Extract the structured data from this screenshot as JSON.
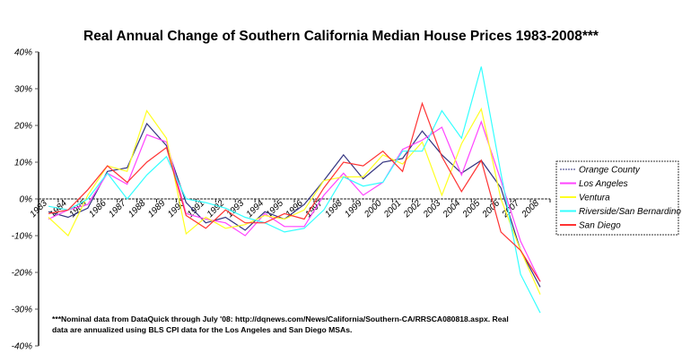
{
  "chart_data": {
    "type": "line",
    "title": "Real Annual Change of Southern California Median House Prices 1983-2008***",
    "xlabel": "",
    "ylabel": "",
    "ylim": [
      -40,
      40
    ],
    "yticks": [
      40,
      30,
      20,
      10,
      0,
      -10,
      -20,
      -30,
      -40
    ],
    "ytick_labels": [
      "40%",
      "30%",
      "20%",
      "10%",
      "0%",
      "-10%",
      "-20%",
      "-30%",
      "-40%"
    ],
    "grid": false,
    "legend_position": "right",
    "categories": [
      "1983",
      "1984",
      "1985",
      "1986",
      "1987",
      "1988",
      "1989",
      "1990",
      "1991",
      "1992",
      "1993",
      "1994",
      "1995",
      "1996",
      "1997",
      "1998",
      "1999",
      "2000",
      "2001",
      "2002",
      "2003",
      "2004",
      "2005",
      "2006",
      "2007",
      "2008"
    ],
    "series": [
      {
        "name": "Orange County",
        "color": "#333380",
        "dashed": true,
        "values": [
          -3.5,
          -5,
          -2.5,
          7.5,
          8.5,
          20.5,
          14.5,
          -1,
          -6.5,
          -5,
          -8.5,
          -3.5,
          -5.5,
          -1.5,
          5,
          12,
          5.5,
          10,
          11,
          18.5,
          12,
          7,
          10.5,
          3,
          -14,
          -24
        ]
      },
      {
        "name": "Los Angeles",
        "color": "#ff44ff",
        "values": [
          -5.5,
          -3,
          -1.5,
          7,
          4,
          17.5,
          15.5,
          -4,
          -5.5,
          -6.5,
          -10,
          -4,
          -7.5,
          -7.5,
          1,
          7,
          1,
          4.5,
          13.5,
          16,
          19.5,
          6.5,
          21,
          5,
          -11.5,
          -22.5
        ]
      },
      {
        "name": "Ventura",
        "color": "#ffff22",
        "values": [
          -5,
          -10,
          1,
          9,
          7.5,
          24,
          16.5,
          -9.5,
          -5,
          -8,
          -7,
          -4.5,
          -5.5,
          -3,
          5,
          6,
          6,
          12,
          9.5,
          15.5,
          1,
          15,
          24.5,
          0,
          -14,
          -26
        ]
      },
      {
        "name": "Riverside/San Bernardino",
        "color": "#33ffff",
        "values": [
          -2,
          -3,
          0,
          7,
          0,
          6.5,
          11.5,
          0,
          -1,
          -2.5,
          -5,
          -6.5,
          -9,
          -8,
          -3,
          6,
          3.5,
          4.5,
          13,
          13,
          24,
          16.5,
          36,
          7,
          -20.5,
          -31
        ]
      },
      {
        "name": "San Diego",
        "color": "#ff3333",
        "values": [
          -4,
          -3,
          2.5,
          9,
          4.5,
          10,
          14,
          -4.5,
          -8,
          -3,
          -6.5,
          -6.5,
          -4,
          -5.5,
          3,
          10,
          9,
          13,
          7.5,
          26,
          11.5,
          2,
          10.5,
          -9,
          -14,
          -22.5
        ]
      }
    ],
    "footnote": [
      "***Nominal data from DataQuick through July '08: http://dqnews.com/News/California/Southern-CA/RRSCA080818.aspx.  Real",
      "data are annualized using BLS CPI data for the Los Angeles and San Diego MSAs."
    ]
  }
}
